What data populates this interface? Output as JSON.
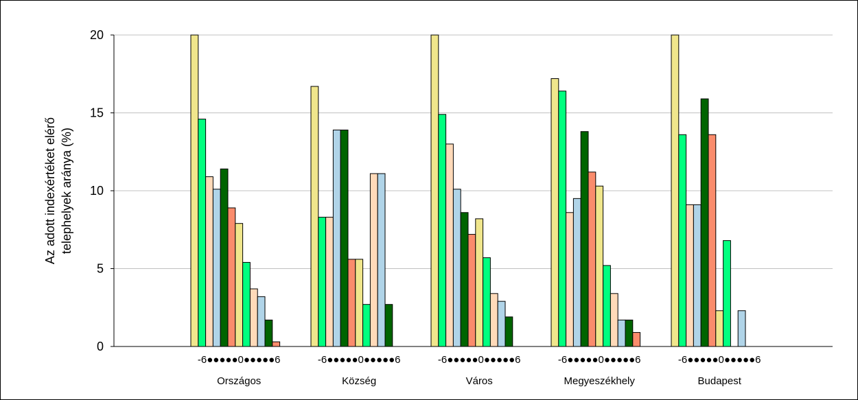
{
  "chart_data": {
    "type": "bar",
    "title": "",
    "ylabel_lines": [
      "Az adott indexértéket elérő",
      "telephelyek aránya  (%)"
    ],
    "xlabel": "",
    "ylim": [
      0,
      20
    ],
    "yticks": [
      0,
      5,
      10,
      15,
      20
    ],
    "grid": true,
    "group_axis_label": "-6●●●●●0●●●●●6",
    "series_colors": [
      "#F0E68C",
      "#00FF7F",
      "#FFDAB9",
      "#B0D4E8",
      "#006400",
      "#FA8C6C"
    ],
    "categories": [
      "Országos",
      "Község",
      "Város",
      "Megyeszékhely",
      "Budapest"
    ],
    "x_index": [
      -6,
      -5,
      -4,
      -3,
      -2,
      -1,
      0,
      1,
      2,
      3,
      4,
      5,
      6
    ],
    "values": [
      [
        20,
        14.6,
        10.9,
        10.1,
        11.4,
        8.9,
        7.9,
        5.4,
        3.7,
        3.2,
        1.7,
        0.3,
        null
      ],
      [
        16.7,
        8.3,
        8.3,
        13.9,
        13.9,
        5.6,
        5.6,
        2.7,
        11.1,
        11.1,
        2.7,
        null,
        null
      ],
      [
        20,
        14.9,
        13.0,
        10.1,
        8.6,
        7.2,
        8.2,
        5.7,
        3.4,
        2.9,
        1.9,
        null,
        null
      ],
      [
        17.2,
        16.4,
        8.6,
        9.5,
        13.8,
        11.2,
        10.3,
        5.2,
        3.4,
        1.7,
        1.7,
        0.9,
        null
      ],
      [
        20,
        13.6,
        9.1,
        9.1,
        15.9,
        13.6,
        2.3,
        6.8,
        null,
        2.3,
        null,
        null,
        null
      ]
    ]
  }
}
